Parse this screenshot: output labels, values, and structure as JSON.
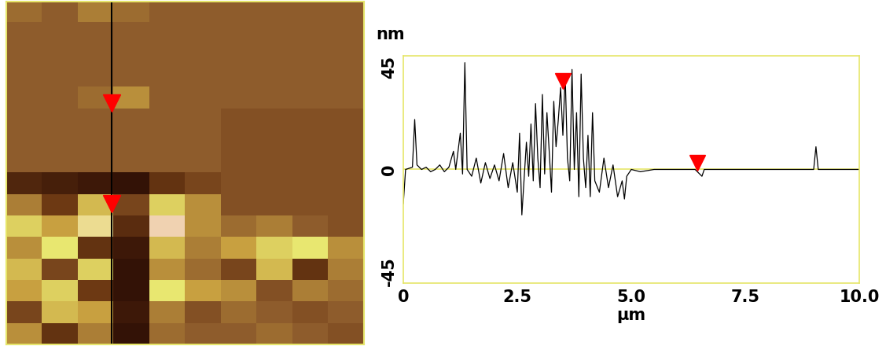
{
  "chart_data": [
    {
      "type": "image",
      "cells": [
        [
          1,
          0,
          2,
          1,
          0,
          0,
          0,
          0,
          0,
          0
        ],
        [
          0,
          0,
          0,
          0,
          0,
          0,
          0,
          0,
          0,
          0
        ],
        [
          0,
          0,
          0,
          0,
          0,
          0,
          0,
          0,
          0,
          0
        ],
        [
          0,
          0,
          0,
          0,
          0,
          0,
          0,
          0,
          0,
          0
        ],
        [
          0,
          0,
          1,
          3,
          0,
          0,
          0,
          0,
          0,
          0
        ],
        [
          0,
          0,
          0,
          0,
          0,
          0,
          -1,
          -1,
          -1,
          -1
        ],
        [
          0,
          0,
          0,
          0,
          0,
          0,
          -1,
          -1,
          -1,
          -1
        ],
        [
          0,
          0,
          0,
          0,
          0,
          0,
          -1,
          -1,
          -1,
          -1
        ],
        [
          -6,
          -7,
          -8,
          -9,
          -4,
          -2,
          -1,
          -1,
          -1,
          -1
        ],
        [
          2,
          -3,
          5,
          -2,
          6,
          3,
          -1,
          -1,
          -1,
          -1
        ],
        [
          6,
          4,
          8,
          -5,
          9,
          3,
          1,
          2,
          0,
          -1
        ],
        [
          3,
          7,
          -4,
          -8,
          5,
          2,
          4,
          6,
          7,
          3
        ],
        [
          5,
          -2,
          6,
          -9,
          3,
          1,
          -2,
          5,
          -4,
          2
        ],
        [
          4,
          6,
          -3,
          -9,
          7,
          4,
          3,
          -1,
          2,
          1
        ],
        [
          -2,
          5,
          4,
          -8,
          2,
          -1,
          1,
          0,
          -1,
          0
        ],
        [
          3,
          -4,
          2,
          -9,
          1,
          0,
          0,
          1,
          0,
          -1
        ]
      ],
      "clim": [
        -10,
        10
      ],
      "xlim": [
        0,
        10
      ],
      "ylim": [
        0,
        10
      ],
      "line_x": 2.95,
      "cursors_y": [
        7.05,
        4.1
      ],
      "tick_labels": false
    },
    {
      "type": "line",
      "ylabel": "nm",
      "xlabel": "µm",
      "color": "#000000",
      "x": [
        0,
        0.05,
        0.2,
        0.25,
        0.3,
        0.4,
        0.5,
        0.6,
        0.7,
        0.8,
        0.9,
        1.0,
        1.1,
        1.15,
        1.25,
        1.3,
        1.35,
        1.4,
        1.5,
        1.6,
        1.7,
        1.8,
        1.9,
        2.0,
        2.1,
        2.2,
        2.3,
        2.4,
        2.5,
        2.55,
        2.6,
        2.7,
        2.75,
        2.8,
        2.85,
        2.9,
        2.95,
        3.0,
        3.05,
        3.1,
        3.15,
        3.2,
        3.25,
        3.3,
        3.35,
        3.4,
        3.45,
        3.5,
        3.55,
        3.6,
        3.65,
        3.7,
        3.75,
        3.8,
        3.85,
        3.9,
        3.95,
        4.0,
        4.05,
        4.1,
        4.15,
        4.2,
        4.3,
        4.4,
        4.5,
        4.6,
        4.7,
        4.8,
        4.85,
        4.9,
        5.0,
        5.2,
        5.5,
        6.0,
        6.4,
        6.55,
        6.6,
        7.0,
        8.0,
        9.0,
        9.05,
        9.1,
        9.5,
        10.0
      ],
      "values": [
        -15,
        0,
        1,
        22,
        2,
        0,
        1,
        -1,
        0,
        2,
        -1,
        1,
        8,
        0,
        16,
        -2,
        47,
        0,
        -3,
        5,
        -6,
        3,
        -4,
        2,
        -5,
        7,
        -8,
        3,
        -10,
        16,
        -20,
        12,
        -3,
        20,
        -5,
        29,
        5,
        -8,
        33,
        -2,
        25,
        8,
        -10,
        30,
        10,
        22,
        36,
        15,
        42,
        5,
        -5,
        44,
        0,
        25,
        -12,
        42,
        5,
        -8,
        15,
        -12,
        25,
        -5,
        -10,
        5,
        -8,
        2,
        -12,
        -5,
        -13,
        -3,
        0,
        -1,
        0,
        0,
        0,
        -3,
        0,
        0,
        0,
        0,
        10,
        0,
        0,
        0
      ],
      "cursors": [
        {
          "x": 3.5,
          "y": 39
        },
        {
          "x": 6.45,
          "y": 3
        }
      ],
      "xlim": [
        0,
        10
      ],
      "ylim": [
        -50,
        50
      ],
      "xticks": [
        0,
        2.5,
        {
          "value": 5,
          "label": "5.0"
        },
        {
          "value": 7.5,
          "label": "7.5"
        },
        {
          "value": 10,
          "label": "10.0"
        }
      ],
      "yticks": [
        -45,
        0,
        45
      ]
    }
  ]
}
